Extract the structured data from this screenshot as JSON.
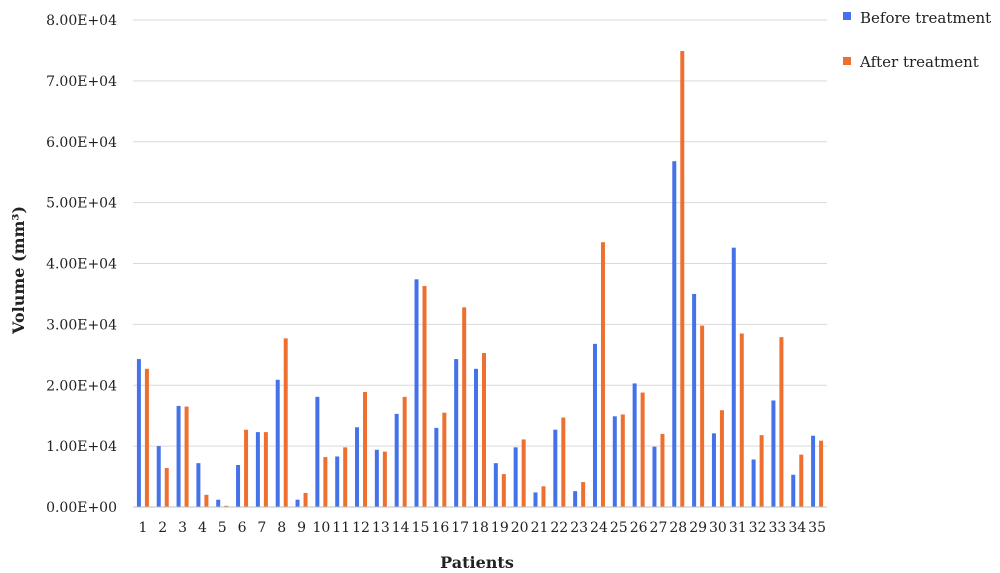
{
  "chart_data": {
    "type": "bar",
    "xlabel": "Patients",
    "ylabel": "Volume (mm³)",
    "ylim": [
      0,
      80000
    ],
    "yticks": [
      0,
      10000,
      20000,
      30000,
      40000,
      50000,
      60000,
      70000,
      80000
    ],
    "ytick_labels": [
      "0.00E+00",
      "1.00E+04",
      "2.00E+04",
      "3.00E+04",
      "4.00E+04",
      "5.00E+04",
      "6.00E+04",
      "7.00E+04",
      "8.00E+04"
    ],
    "grid": true,
    "legend_position": "top-right",
    "categories": [
      "1",
      "2",
      "3",
      "4",
      "5",
      "6",
      "7",
      "8",
      "9",
      "10",
      "11",
      "12",
      "13",
      "14",
      "15",
      "16",
      "17",
      "18",
      "19",
      "20",
      "21",
      "22",
      "23",
      "24",
      "25",
      "26",
      "27",
      "28",
      "29",
      "30",
      "31",
      "32",
      "33",
      "34",
      "35"
    ],
    "series": [
      {
        "name": "Before treatment",
        "color": "#4472e8",
        "values": [
          24300,
          10000,
          16600,
          7200,
          1200,
          6900,
          12300,
          20900,
          1200,
          18100,
          8300,
          13100,
          9400,
          15300,
          37400,
          13000,
          24300,
          22700,
          7200,
          9800,
          2400,
          12700,
          2600,
          26800,
          14900,
          20300,
          9900,
          56800,
          35000,
          12100,
          42600,
          7800,
          17500,
          5300,
          11700
        ]
      },
      {
        "name": "After treatment",
        "color": "#ed7031",
        "values": [
          22700,
          6400,
          16500,
          2000,
          200,
          12700,
          12300,
          27700,
          2300,
          8200,
          9800,
          18900,
          9100,
          18100,
          36300,
          15500,
          32800,
          25300,
          5400,
          11100,
          3400,
          14700,
          4100,
          43500,
          15200,
          18800,
          12000,
          74900,
          29800,
          15900,
          28500,
          11800,
          27900,
          8600,
          10900
        ]
      }
    ]
  }
}
